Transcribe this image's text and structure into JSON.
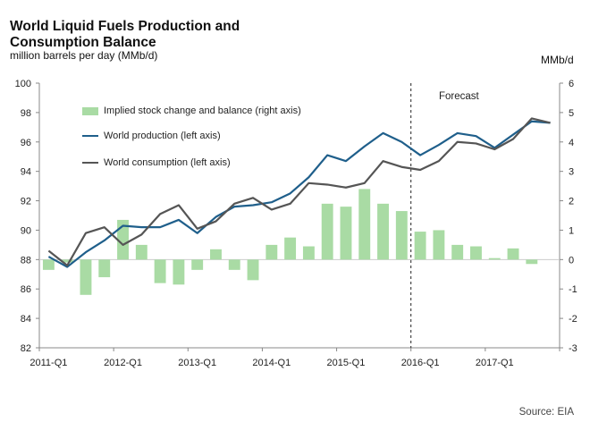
{
  "header": {
    "title": "World Liquid Fuels Production and Consumption Balance",
    "subtitle": "million barrels per day (MMb/d)",
    "right_unit": "MMb/d",
    "source": "Source: EIA",
    "forecast_label": "Forecast"
  },
  "legend": {
    "stock": "Implied stock change and balance (right axis)",
    "production": "World production (left axis)",
    "consumption": "World consumption (left axis)"
  },
  "colors": {
    "bar": "#a9dba4",
    "production": "#1f5f8b",
    "consumption": "#555555",
    "axis": "#888888"
  },
  "chart_data": {
    "type": "bar+line",
    "x_tick_labels": [
      "2011-Q1",
      "2012-Q1",
      "2013-Q1",
      "2014-Q1",
      "2015-Q1",
      "2016-Q1",
      "2017-Q1"
    ],
    "quarters": [
      "2011-Q1",
      "2011-Q2",
      "2011-Q3",
      "2011-Q4",
      "2012-Q1",
      "2012-Q2",
      "2012-Q3",
      "2012-Q4",
      "2013-Q1",
      "2013-Q2",
      "2013-Q3",
      "2013-Q4",
      "2014-Q1",
      "2014-Q2",
      "2014-Q3",
      "2014-Q4",
      "2015-Q1",
      "2015-Q2",
      "2015-Q3",
      "2015-Q4",
      "2016-Q1",
      "2016-Q2",
      "2016-Q3",
      "2016-Q4",
      "2017-Q1",
      "2017-Q2",
      "2017-Q3",
      "2017-Q4"
    ],
    "left_axis": {
      "min": 82,
      "max": 100,
      "ticks": [
        82,
        84,
        86,
        88,
        90,
        92,
        94,
        96,
        98,
        100
      ]
    },
    "right_axis": {
      "min": -3,
      "max": 6,
      "ticks": [
        -3,
        -2,
        -1,
        0,
        1,
        2,
        3,
        4,
        5,
        6
      ]
    },
    "forecast_start": "2016-Q1",
    "series": [
      {
        "name": "Implied stock change and balance (right axis)",
        "kind": "bar",
        "axis": "right",
        "values": [
          -0.35,
          -0.1,
          -1.2,
          -0.6,
          1.35,
          0.5,
          -0.8,
          -0.85,
          -0.35,
          0.35,
          -0.35,
          -0.7,
          0.5,
          0.75,
          0.45,
          1.9,
          1.8,
          2.4,
          1.9,
          1.65,
          0.95,
          1.0,
          0.5,
          0.45,
          0.05,
          0.38,
          -0.15,
          0
        ]
      },
      {
        "name": "World production (left axis)",
        "kind": "line",
        "axis": "left",
        "values": [
          88.2,
          87.5,
          88.5,
          89.3,
          90.3,
          90.2,
          90.2,
          90.7,
          89.8,
          90.9,
          91.6,
          91.7,
          91.9,
          92.5,
          93.6,
          95.1,
          94.7,
          95.7,
          96.6,
          96.0,
          95.1,
          95.8,
          96.6,
          96.4,
          95.6,
          96.5,
          97.4,
          97.3
        ]
      },
      {
        "name": "World consumption (left axis)",
        "kind": "line",
        "axis": "left",
        "values": [
          88.6,
          87.6,
          89.8,
          90.2,
          89.0,
          89.7,
          91.1,
          91.7,
          90.1,
          90.6,
          91.8,
          92.2,
          91.4,
          91.8,
          93.2,
          93.1,
          92.9,
          93.2,
          94.7,
          94.3,
          94.1,
          94.7,
          96.0,
          95.9,
          95.5,
          96.2,
          97.6,
          97.3
        ]
      }
    ]
  }
}
